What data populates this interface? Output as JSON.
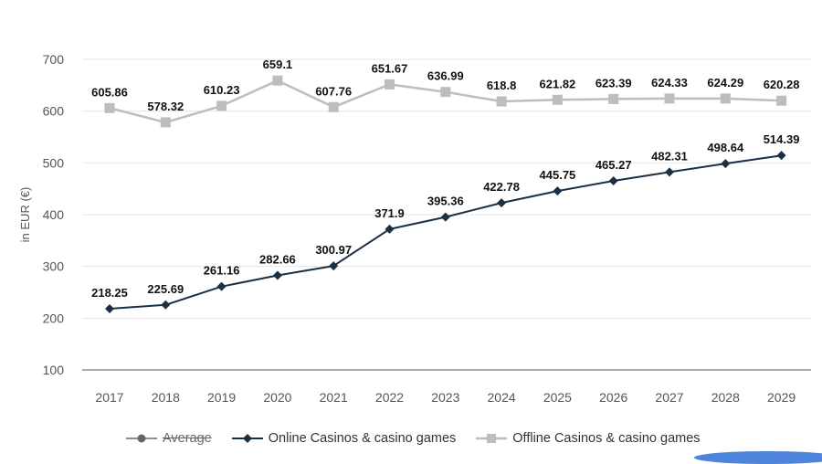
{
  "chart_data": {
    "type": "line",
    "categories": [
      "2017",
      "2018",
      "2019",
      "2020",
      "2021",
      "2022",
      "2023",
      "2024",
      "2025",
      "2026",
      "2027",
      "2028",
      "2029"
    ],
    "series": [
      {
        "name": "Online Casinos & casino games",
        "color": "#1b2f45",
        "marker": "diamond",
        "values": [
          218.25,
          225.69,
          261.16,
          282.66,
          300.97,
          371.9,
          395.36,
          422.78,
          445.75,
          465.27,
          482.31,
          498.64,
          514.39
        ],
        "labels": [
          "218.25",
          "225.69",
          "261.16",
          "282.66",
          "300.97",
          "371.9",
          "395.36",
          "422.78",
          "445.75",
          "465.27",
          "482.31",
          "498.64",
          "514.39"
        ]
      },
      {
        "name": "Offline Casinos & casino games",
        "color": "#bdbdbd",
        "marker": "square",
        "values": [
          605.86,
          578.32,
          610.23,
          659.1,
          607.76,
          651.67,
          636.99,
          618.8,
          621.82,
          623.39,
          624.33,
          624.29,
          620.28
        ],
        "labels": [
          "605.86",
          "578.32",
          "610.23",
          "659.1",
          "607.76",
          "651.67",
          "636.99",
          "618.8",
          "621.82",
          "623.39",
          "624.33",
          "624.29",
          "620.28"
        ]
      }
    ],
    "ylabel": "in EUR (€)",
    "ylim": [
      100,
      700
    ],
    "yticks": [
      "100",
      "200",
      "300",
      "400",
      "500",
      "600",
      "700"
    ],
    "grid": "horizontal",
    "legend_position": "bottom",
    "legend": [
      {
        "label": "Average",
        "marker": "circle",
        "color": "#666666",
        "disabled": true
      },
      {
        "label": "Online Casinos & casino games",
        "marker": "diamond",
        "color": "#1b2f45",
        "disabled": false
      },
      {
        "label": "Offline Casinos & casino games",
        "marker": "square",
        "color": "#bdbdbd",
        "disabled": false
      }
    ]
  }
}
